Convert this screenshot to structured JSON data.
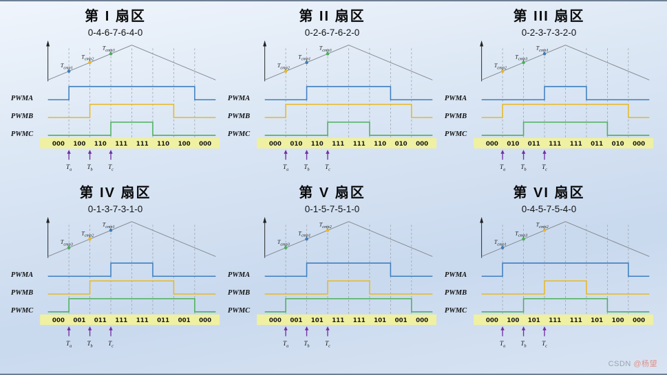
{
  "watermark": {
    "brand": "CSDN",
    "handle": "@杨望"
  },
  "colors": {
    "pwma": "#3d7ebf",
    "pwmb": "#e8b823",
    "pwmc": "#4cb05a",
    "carrier": "#84898f",
    "grid": "#9aa0a8",
    "code_bar": "#eff0a2",
    "axis": "#222222",
    "arrow": "#7030a0"
  },
  "pwm_labels": [
    "PWMA",
    "PWMB",
    "PWMC"
  ],
  "time_marker_subs": [
    "a",
    "b",
    "c"
  ],
  "marker_color_map": {
    "cmp1": "pwma",
    "cmp2": "pwmb",
    "cmp3": "pwmc"
  },
  "panels": [
    {
      "title": "第 I 扇区",
      "sequence": "0-4-6-7-6-4-0",
      "markers": [
        "cmp1",
        "cmp2",
        "cmp3"
      ],
      "codes": [
        "000",
        "100",
        "110",
        "111",
        "111",
        "110",
        "100",
        "000"
      ]
    },
    {
      "title": "第 II 扇区",
      "sequence": "0-2-6-7-6-2-0",
      "markers": [
        "cmp2",
        "cmp1",
        "cmp3"
      ],
      "codes": [
        "000",
        "010",
        "110",
        "111",
        "111",
        "110",
        "010",
        "000"
      ]
    },
    {
      "title": "第 III 扇区",
      "sequence": "0-2-3-7-3-2-0",
      "markers": [
        "cmp2",
        "cmp3",
        "cmp1"
      ],
      "codes": [
        "000",
        "010",
        "011",
        "111",
        "111",
        "011",
        "010",
        "000"
      ]
    },
    {
      "title": "第 IV 扇区",
      "sequence": "0-1-3-7-3-1-0",
      "markers": [
        "cmp3",
        "cmp2",
        "cmp1"
      ],
      "codes": [
        "000",
        "001",
        "011",
        "111",
        "111",
        "011",
        "001",
        "000"
      ]
    },
    {
      "title": "第 V 扇区",
      "sequence": "0-1-5-7-5-1-0",
      "markers": [
        "cmp3",
        "cmp1",
        "cmp2"
      ],
      "codes": [
        "000",
        "001",
        "101",
        "111",
        "111",
        "101",
        "001",
        "000"
      ]
    },
    {
      "title": "第 VI 扇区",
      "sequence": "0-4-5-7-5-4-0",
      "markers": [
        "cmp1",
        "cmp3",
        "cmp2"
      ],
      "codes": [
        "000",
        "100",
        "101",
        "111",
        "111",
        "101",
        "100",
        "000"
      ]
    }
  ]
}
